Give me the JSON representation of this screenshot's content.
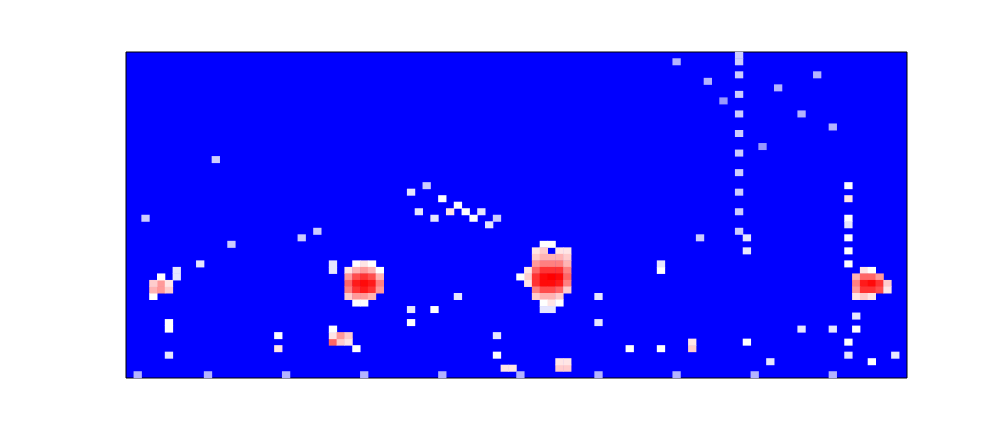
{
  "chart_data": {
    "type": "heatmap",
    "xlim": [
      0,
      100
    ],
    "ylim": [
      0,
      50
    ],
    "tick_labels": false,
    "grid": false,
    "color_range": [
      0,
      1
    ],
    "cells": [
      [
        3,
        12,
        0.5
      ],
      [
        3,
        13,
        0.65
      ],
      [
        4,
        13,
        0.7
      ],
      [
        4,
        14,
        0.7
      ],
      [
        5,
        13,
        0.6
      ],
      [
        3,
        14,
        0.6
      ],
      [
        5,
        14,
        0.55
      ],
      [
        4,
        15,
        0.5
      ],
      [
        6,
        15,
        0.45
      ],
      [
        6,
        16,
        0.45
      ],
      [
        29,
        17,
        0.5
      ],
      [
        30,
        17,
        0.55
      ],
      [
        31,
        17,
        0.5
      ],
      [
        28,
        16,
        0.55
      ],
      [
        29,
        16,
        0.65
      ],
      [
        30,
        16,
        0.7
      ],
      [
        31,
        16,
        0.65
      ],
      [
        32,
        16,
        0.5
      ],
      [
        28,
        15,
        0.7
      ],
      [
        29,
        15,
        0.85
      ],
      [
        30,
        15,
        0.9
      ],
      [
        31,
        15,
        0.85
      ],
      [
        32,
        15,
        0.65
      ],
      [
        28,
        14,
        0.8
      ],
      [
        29,
        14,
        0.95
      ],
      [
        30,
        14,
        0.98
      ],
      [
        31,
        14,
        0.95
      ],
      [
        32,
        14,
        0.75
      ],
      [
        28,
        13,
        0.75
      ],
      [
        29,
        13,
        0.9
      ],
      [
        30,
        13,
        0.95
      ],
      [
        31,
        13,
        0.9
      ],
      [
        32,
        13,
        0.7
      ],
      [
        28,
        12,
        0.6
      ],
      [
        29,
        12,
        0.7
      ],
      [
        30,
        12,
        0.7
      ],
      [
        31,
        12,
        0.65
      ],
      [
        29,
        11,
        0.5
      ],
      [
        30,
        11,
        0.5
      ],
      [
        26,
        5,
        0.8
      ],
      [
        26,
        6,
        0.55
      ],
      [
        26,
        7,
        0.5
      ],
      [
        27,
        5,
        0.6
      ],
      [
        27,
        6,
        0.7
      ],
      [
        28,
        5,
        0.55
      ],
      [
        28,
        6,
        0.6
      ],
      [
        29,
        4,
        0.5
      ],
      [
        26,
        16,
        0.45
      ],
      [
        26,
        17,
        0.45
      ],
      [
        53,
        20,
        0.5
      ],
      [
        54,
        20,
        0.5
      ],
      [
        52,
        19,
        0.55
      ],
      [
        53,
        19,
        0.6
      ],
      [
        55,
        19,
        0.55
      ],
      [
        56,
        19,
        0.55
      ],
      [
        52,
        18,
        0.6
      ],
      [
        53,
        18,
        0.65
      ],
      [
        54,
        18,
        0.65
      ],
      [
        55,
        18,
        0.65
      ],
      [
        56,
        18,
        0.6
      ],
      [
        52,
        17,
        0.7
      ],
      [
        53,
        17,
        0.75
      ],
      [
        54,
        17,
        0.75
      ],
      [
        55,
        17,
        0.75
      ],
      [
        56,
        17,
        0.65
      ],
      [
        51,
        16,
        0.55
      ],
      [
        52,
        16,
        0.8
      ],
      [
        53,
        16,
        0.9
      ],
      [
        54,
        16,
        0.9
      ],
      [
        55,
        16,
        0.9
      ],
      [
        56,
        16,
        0.75
      ],
      [
        51,
        15,
        0.6
      ],
      [
        52,
        15,
        0.9
      ],
      [
        53,
        15,
        0.98
      ],
      [
        54,
        15,
        1
      ],
      [
        55,
        15,
        0.98
      ],
      [
        56,
        15,
        0.8
      ],
      [
        51,
        14,
        0.55
      ],
      [
        52,
        14,
        0.9
      ],
      [
        53,
        14,
        0.98
      ],
      [
        54,
        14,
        0.98
      ],
      [
        55,
        14,
        0.95
      ],
      [
        56,
        14,
        0.75
      ],
      [
        52,
        13,
        0.75
      ],
      [
        53,
        13,
        0.85
      ],
      [
        54,
        13,
        0.85
      ],
      [
        55,
        13,
        0.8
      ],
      [
        56,
        13,
        0.6
      ],
      [
        52,
        12,
        0.6
      ],
      [
        53,
        12,
        0.65
      ],
      [
        54,
        12,
        0.65
      ],
      [
        55,
        12,
        0.6
      ],
      [
        53,
        11,
        0.5
      ],
      [
        54,
        11,
        0.55
      ],
      [
        55,
        11,
        0.5
      ],
      [
        53,
        10,
        0.45
      ],
      [
        54,
        10,
        0.45
      ],
      [
        55,
        1,
        0.6
      ],
      [
        56,
        1,
        0.6
      ],
      [
        55,
        2,
        0.55
      ],
      [
        56,
        2,
        0.55
      ],
      [
        94,
        16,
        0.55
      ],
      [
        95,
        16,
        0.5
      ],
      [
        93,
        15,
        0.65
      ],
      [
        94,
        15,
        0.8
      ],
      [
        95,
        15,
        0.8
      ],
      [
        96,
        15,
        0.7
      ],
      [
        93,
        14,
        0.75
      ],
      [
        94,
        14,
        0.95
      ],
      [
        95,
        14,
        0.98
      ],
      [
        96,
        14,
        0.9
      ],
      [
        97,
        14,
        0.6
      ],
      [
        93,
        13,
        0.7
      ],
      [
        94,
        13,
        0.9
      ],
      [
        95,
        13,
        0.9
      ],
      [
        96,
        13,
        0.85
      ],
      [
        97,
        13,
        0.55
      ],
      [
        93,
        12,
        0.55
      ],
      [
        94,
        12,
        0.6
      ],
      [
        95,
        12,
        0.55
      ],
      [
        92,
        17,
        0.5
      ],
      [
        92,
        19,
        0.5
      ],
      [
        92,
        21,
        0.5
      ],
      [
        92,
        23,
        0.45
      ],
      [
        92,
        24,
        0.5
      ],
      [
        92,
        27,
        0.55
      ],
      [
        92,
        29,
        0.5
      ],
      [
        92,
        3,
        0.45
      ],
      [
        92,
        5,
        0.5
      ],
      [
        93,
        7,
        0.5
      ],
      [
        93,
        9,
        0.45
      ],
      [
        78,
        22,
        0.4
      ],
      [
        78,
        25,
        0.4
      ],
      [
        78,
        28,
        0.4
      ],
      [
        78,
        31,
        0.4
      ],
      [
        78,
        34,
        0.4
      ],
      [
        78,
        37,
        0.4
      ],
      [
        78,
        40,
        0.4
      ],
      [
        78,
        43,
        0.4
      ],
      [
        78,
        46,
        0.4
      ],
      [
        78,
        48,
        0.4
      ],
      [
        78,
        49,
        0.4
      ],
      [
        79,
        19,
        0.45
      ],
      [
        79,
        21,
        0.45
      ],
      [
        36,
        28,
        0.45
      ],
      [
        38,
        29,
        0.4
      ],
      [
        40,
        27,
        0.5
      ],
      [
        41,
        25,
        0.55
      ],
      [
        42,
        26,
        0.5
      ],
      [
        43,
        25,
        0.5
      ],
      [
        44,
        24,
        0.5
      ],
      [
        45,
        25,
        0.45
      ],
      [
        46,
        23,
        0.45
      ],
      [
        39,
        24,
        0.45
      ],
      [
        37,
        25,
        0.45
      ],
      [
        47,
        24,
        0.4
      ],
      [
        2,
        24,
        0.4
      ],
      [
        5,
        7,
        0.5
      ],
      [
        5,
        8,
        0.5
      ],
      [
        5,
        3,
        0.45
      ],
      [
        9,
        17,
        0.45
      ],
      [
        11,
        33,
        0.4
      ],
      [
        13,
        20,
        0.4
      ],
      [
        19,
        4,
        0.55
      ],
      [
        19,
        6,
        0.5
      ],
      [
        22,
        21,
        0.4
      ],
      [
        24,
        22,
        0.4
      ],
      [
        36,
        8,
        0.5
      ],
      [
        36,
        10,
        0.45
      ],
      [
        39,
        10,
        0.5
      ],
      [
        42,
        12,
        0.45
      ],
      [
        47,
        3,
        0.5
      ],
      [
        47,
        6,
        0.45
      ],
      [
        48,
        1,
        0.55
      ],
      [
        49,
        1,
        0.55
      ],
      [
        50,
        15,
        0.5
      ],
      [
        60,
        12,
        0.45
      ],
      [
        60,
        8,
        0.45
      ],
      [
        64,
        4,
        0.5
      ],
      [
        68,
        16,
        0.5
      ],
      [
        68,
        17,
        0.45
      ],
      [
        68,
        4,
        0.5
      ],
      [
        72,
        4,
        0.6
      ],
      [
        72,
        5,
        0.55
      ],
      [
        73,
        21,
        0.4
      ],
      [
        79,
        5,
        0.5
      ],
      [
        82,
        2,
        0.45
      ],
      [
        86,
        7,
        0.45
      ],
      [
        90,
        7,
        0.45
      ],
      [
        95,
        2,
        0.5
      ],
      [
        98,
        3,
        0.45
      ],
      [
        70,
        48,
        0.35
      ],
      [
        74,
        45,
        0.35
      ],
      [
        83,
        44,
        0.35
      ],
      [
        86,
        40,
        0.35
      ],
      [
        88,
        46,
        0.35
      ],
      [
        90,
        38,
        0.35
      ],
      [
        81,
        35,
        0.3
      ],
      [
        76,
        42,
        0.3
      ],
      [
        1,
        0,
        0.35
      ],
      [
        10,
        0,
        0.35
      ],
      [
        20,
        0,
        0.35
      ],
      [
        30,
        0,
        0.35
      ],
      [
        40,
        0,
        0.35
      ],
      [
        50,
        0,
        0.35
      ],
      [
        60,
        0,
        0.35
      ],
      [
        70,
        0,
        0.35
      ],
      [
        80,
        0,
        0.35
      ],
      [
        90,
        0,
        0.35
      ]
    ]
  }
}
